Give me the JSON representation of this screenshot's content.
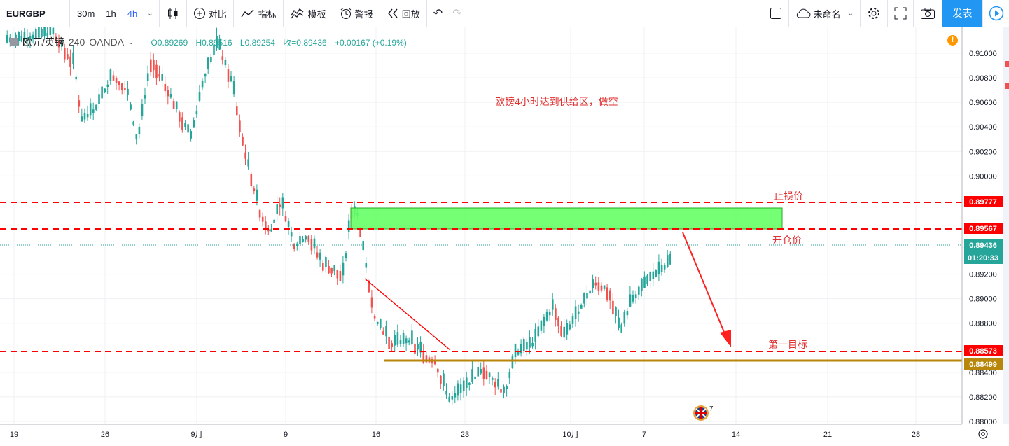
{
  "toolbar": {
    "symbol": "EURGBP",
    "intervals": [
      "30m",
      "1h",
      "4h"
    ],
    "compare": "对比",
    "indicators": "指标",
    "templates": "模板",
    "alerts": "警报",
    "replay": "回放",
    "layout_name": "未命名",
    "publish": "发表"
  },
  "legend": {
    "pair": "欧元/英镑",
    "interval": "240",
    "broker": "OANDA",
    "open": "O0.89269",
    "high": "H0.89516",
    "low": "L0.89254",
    "close": "收=0.89436",
    "change": "+0.00167 (+0.19%)"
  },
  "price_axis": {
    "ticks": [
      "0.91000",
      "0.90800",
      "0.90600",
      "0.90400",
      "0.90200",
      "0.90000",
      "0.89200",
      "0.89000",
      "0.88800",
      "0.88400",
      "0.88200",
      "0.88000"
    ],
    "tags": {
      "stop_loss": "0.89777",
      "entry": "0.89567",
      "current": "0.89436",
      "countdown": "01:20:33",
      "target": "0.88573",
      "support": "0.88499"
    }
  },
  "time_axis": [
    "19",
    "26",
    "9月",
    "9",
    "16",
    "23",
    "10月",
    "7",
    "14",
    "21",
    "28"
  ],
  "annotations": {
    "title": "欧镑4小时达到供给区，做空",
    "stop_loss": "止损价",
    "entry": "开仓价",
    "target": "第一目标"
  },
  "events_badge": "7",
  "colors": {
    "up": "#26a69a",
    "down": "#ef5350",
    "dashed": "#ff0000",
    "zone": "#66ff66",
    "support": "#b8860b",
    "accent": "#2962ff"
  }
}
